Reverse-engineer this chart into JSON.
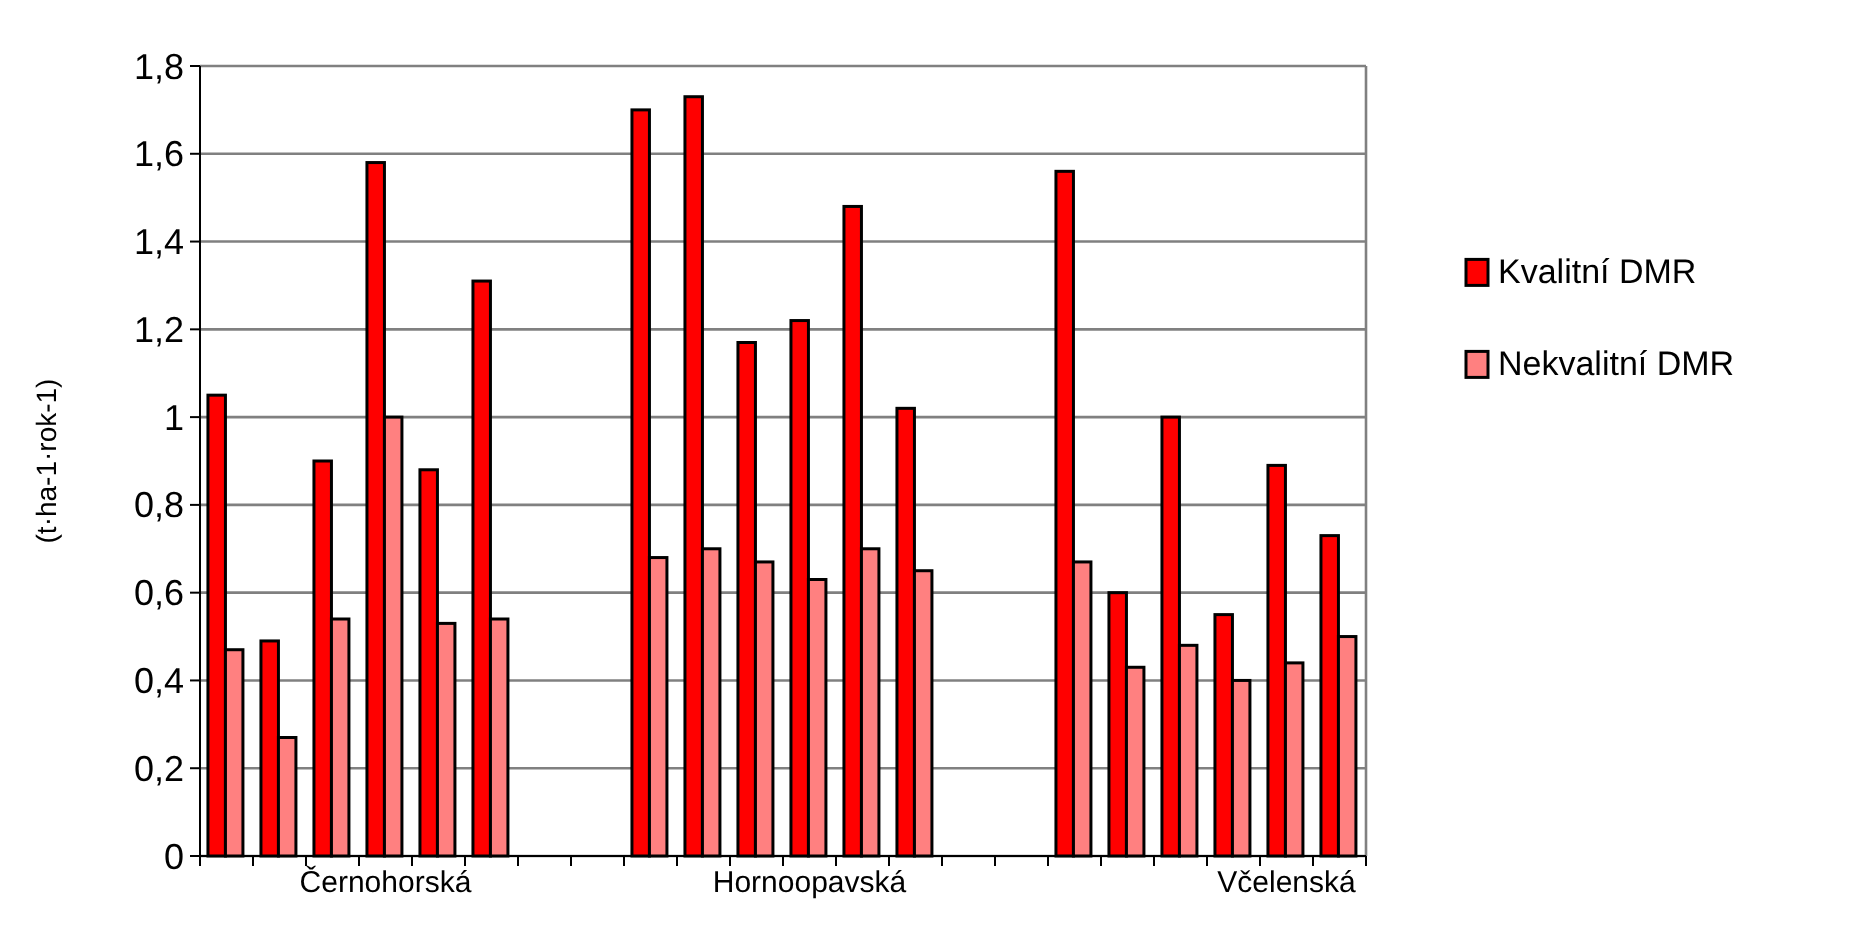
{
  "chart_data": {
    "type": "bar",
    "ylabel": "(t·ha-1·rok-1)",
    "categories": [
      null,
      null,
      null,
      "Černohorská",
      null,
      null,
      null,
      null,
      null,
      null,
      null,
      "Hornoopavská",
      null,
      null,
      null,
      null,
      null,
      null,
      null,
      null,
      "Včelenská",
      null
    ],
    "series": [
      {
        "name": "Kvalitní DMR",
        "color": "#ff0000",
        "values": [
          1.05,
          0.49,
          0.9,
          1.58,
          0.88,
          1.31,
          null,
          null,
          1.7,
          1.73,
          1.17,
          1.22,
          1.48,
          1.02,
          null,
          null,
          1.56,
          0.6,
          1.0,
          0.55,
          0.89,
          0.73
        ]
      },
      {
        "name": "Nekvalitní DMR",
        "color": "#ff8080",
        "values": [
          0.47,
          0.27,
          0.54,
          1.0,
          0.53,
          0.54,
          null,
          null,
          0.68,
          0.7,
          0.67,
          0.63,
          0.7,
          0.65,
          null,
          null,
          0.67,
          0.43,
          0.48,
          0.4,
          0.44,
          0.5
        ]
      }
    ],
    "ylim": [
      0,
      1.8
    ],
    "yticks": [
      0,
      {
        "value": 0.2,
        "label": "0,2"
      },
      {
        "value": 0.4,
        "label": "0,4"
      },
      {
        "value": 0.6,
        "label": "0,6"
      },
      {
        "value": 0.8,
        "label": "0,8"
      },
      1,
      {
        "value": 1.2,
        "label": "1,2"
      },
      {
        "value": 1.4,
        "label": "1,4"
      },
      {
        "value": 1.6,
        "label": "1,6"
      },
      {
        "value": 1.8,
        "label": "1,8"
      }
    ],
    "grid": "y",
    "legend": "right"
  }
}
